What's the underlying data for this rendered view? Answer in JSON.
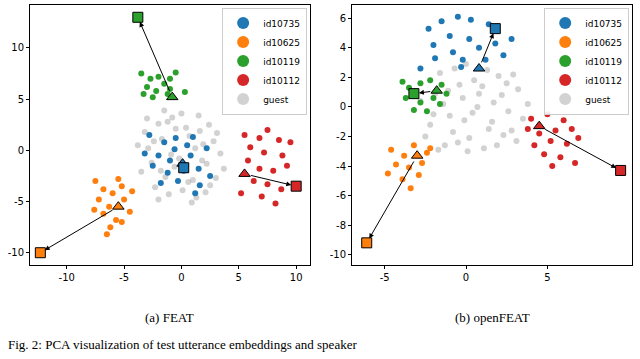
{
  "caption": "Fig. 2: PCA visualization of test utterance embeddings and speaker",
  "chart_data": [
    {
      "type": "scatter",
      "title": "(a) FEAT",
      "xlim": [
        -13.2,
        11.2
      ],
      "ylim": [
        -11.2,
        14.2
      ],
      "xticks": [
        -10,
        -5,
        0,
        5,
        10
      ],
      "yticks": [
        -10,
        -5,
        0,
        5,
        10
      ],
      "grid": false,
      "legend": "upper right",
      "series": [
        {
          "name": "id10735",
          "color": "#1f77b4",
          "x": [
            -2,
            -1.5,
            -0.5,
            0.5,
            1,
            -2.5,
            -1.2,
            0.8,
            1.5,
            -0.3,
            -1.8,
            1.6,
            -3.2,
            2.2,
            -1,
            0.2,
            -2.8,
            1.2,
            -0.6,
            2.5
          ],
          "y": [
            -0.5,
            0.8,
            1.2,
            0.5,
            1.3,
            -1.5,
            -2.2,
            -0.5,
            -1.8,
            -3,
            -3.2,
            -3.4,
            -0.3,
            0.2,
            -1,
            -2,
            1.5,
            -4.2,
            0.1,
            -2.5
          ],
          "arrow": {
            "from": [
              0.1,
              -1.3
            ],
            "to": [
              0.2,
              -1.7
            ]
          }
        },
        {
          "name": "id10625",
          "color": "#ff7f0e",
          "x": [
            -7.5,
            -6.8,
            -6,
            -5.2,
            -7.2,
            -6.3,
            -5,
            -4.3,
            -6.8,
            -5.7,
            -6.2,
            -5.2,
            -7.6,
            -4.5,
            -6.5,
            -5.5
          ],
          "y": [
            -3,
            -3.8,
            -4.2,
            -3.5,
            -4.8,
            -5.5,
            -4.8,
            -4,
            -6.2,
            -6.8,
            -7.5,
            -7,
            -5.8,
            -6,
            -8.2,
            -2.8
          ],
          "arrow": {
            "from": [
              -5.5,
              -5.5
            ],
            "to": [
              -12.3,
              -10
            ]
          }
        },
        {
          "name": "id10119",
          "color": "#2ca02c",
          "x": [
            -3.5,
            -2.7,
            -2,
            -1,
            -0.5,
            -1.5,
            -3,
            -2.2,
            -1,
            -2.5,
            -1.2,
            0.3,
            -3.3
          ],
          "y": [
            7.5,
            7,
            7.2,
            7,
            7.6,
            6.5,
            6.2,
            5.8,
            6,
            5.2,
            5.5,
            5.7,
            5.5
          ],
          "arrow": {
            "from": [
              -0.8,
              5.2
            ],
            "to": [
              -3.8,
              13
            ]
          }
        },
        {
          "name": "id10112",
          "color": "#d62728",
          "x": [
            5.5,
            6.8,
            7.5,
            8.5,
            6,
            7.2,
            8.8,
            5.8,
            6.8,
            8,
            9.2,
            6.3,
            7.5,
            8.7,
            5.2,
            7,
            8.2,
            9.5
          ],
          "y": [
            1.5,
            1.2,
            2,
            1,
            0.3,
            -0.2,
            -0.5,
            -1,
            -1.8,
            -2,
            -1.5,
            -3,
            -3.3,
            -3.8,
            -4.2,
            -4.5,
            -5.2,
            0.8
          ],
          "arrow": {
            "from": [
              5.5,
              -2.3
            ],
            "to": [
              10,
              -3.5
            ]
          }
        },
        {
          "name": "guest",
          "color": "#7f7f7f",
          "x": [
            -3.8,
            -3.2,
            -2.6,
            -2,
            -1.4,
            -0.8,
            -0.2,
            0.4,
            1,
            1.6,
            2.2,
            2.8,
            3.4,
            -3.5,
            -2.9,
            -2.3,
            -1.7,
            -1.1,
            -0.5,
            0.1,
            0.7,
            1.3,
            1.9,
            2.5,
            3.1,
            3.7,
            -3,
            -2.4,
            -1.8,
            -1.2,
            -0.6,
            0,
            0.6,
            1.2,
            1.8,
            2.4,
            3,
            -2,
            -0.9,
            0.9,
            2.1,
            -1.5,
            0.3,
            1.5
          ],
          "y": [
            0.5,
            1.8,
            -1.2,
            2.6,
            -2.6,
            3.2,
            -0.8,
            2.2,
            -2.9,
            1.9,
            -1.3,
            0.9,
            -0.3,
            -2.1,
            0.2,
            -3.6,
            1.1,
            -4.3,
            2.1,
            -3.9,
            1.4,
            -4.6,
            0.6,
            -3.4,
            1.7,
            -1.8,
            3.1,
            0.9,
            -2,
            2.8,
            -1.6,
            3.6,
            -3.1,
            0.2,
            -1,
            2.5,
            -2.7,
            -4.8,
            -0.4,
            -5.1,
            -4.1,
            3.9,
            -1.4,
            3.4
          ]
        }
      ]
    },
    {
      "type": "scatter",
      "title": "(b) openFEAT",
      "xlim": [
        -7,
        10.2
      ],
      "ylim": [
        -10.7,
        6.9
      ],
      "xticks": [
        -5,
        0,
        5
      ],
      "yticks": [
        -10,
        -8,
        -6,
        -4,
        -2,
        0,
        2,
        4,
        6
      ],
      "grid": false,
      "legend": "upper right",
      "series": [
        {
          "name": "id10735",
          "color": "#1f77b4",
          "x": [
            -2.3,
            -1.5,
            -0.5,
            0.3,
            1.4,
            -1,
            0.2,
            -2,
            0.8,
            1.8,
            -0.8,
            -1.9,
            -0.2,
            1.2,
            2.3,
            -2.8,
            2.8,
            -0.3
          ],
          "y": [
            5.3,
            5.8,
            6.1,
            5.9,
            5.6,
            4.8,
            4.6,
            4.2,
            4,
            4.3,
            3.7,
            3.3,
            3.2,
            3.2,
            3.5,
            2.6,
            4.6,
            2.7
          ],
          "arrow": {
            "from": [
              0.8,
              2.6
            ],
            "to": [
              1.8,
              5.3
            ]
          }
        },
        {
          "name": "id10625",
          "color": "#ff7f0e",
          "x": [
            -4.6,
            -3.8,
            -3.2,
            -2.4,
            -4.3,
            -3.5,
            -2.7,
            -4.8,
            -3.9,
            -2.9,
            -3.4,
            -2.2
          ],
          "y": [
            -2.9,
            -3.3,
            -2.6,
            -3.1,
            -3.9,
            -4.1,
            -3.8,
            -4.5,
            -4.9,
            -4.6,
            -5.5,
            -2.8
          ],
          "arrow": {
            "from": [
              -3,
              -3.3
            ],
            "to": [
              -6.1,
              -9.2
            ]
          }
        },
        {
          "name": "id10119",
          "color": "#2ca02c",
          "x": [
            -3.5,
            -2.8,
            -2.2,
            -1.5,
            -3.7,
            -2.8,
            -2,
            -1.2,
            -3.2,
            -2.4,
            -1.6,
            -3.9
          ],
          "y": [
            1.3,
            1.6,
            1.8,
            1.5,
            0.6,
            0.3,
            0.6,
            0.9,
            -0.2,
            -0.3,
            0.2,
            1.7
          ],
          "arrow": {
            "from": [
              -1.8,
              1.1
            ],
            "to": [
              -3.2,
              0.9
            ]
          }
        },
        {
          "name": "id10112",
          "color": "#d62728",
          "x": [
            4,
            5,
            6,
            4.5,
            5.5,
            6.5,
            4.2,
            5.2,
            6.2,
            4.8,
            5.8,
            6.7,
            5.3,
            3.8,
            6.9
          ],
          "y": [
            -0.8,
            -0.5,
            -0.9,
            -1.8,
            -1.6,
            -1.5,
            -2.6,
            -2.3,
            -2.5,
            -3.2,
            -3.4,
            -3.8,
            -4,
            -1.5,
            -2.1
          ],
          "arrow": {
            "from": [
              4.5,
              -1.3
            ],
            "to": [
              9.5,
              -4.3
            ]
          }
        },
        {
          "name": "guest",
          "color": "#7f7f7f",
          "x": [
            -2.8,
            -2.2,
            -1.6,
            -1,
            -0.4,
            0.2,
            0.8,
            1.4,
            2,
            2.6,
            3.2,
            3.8,
            -2.5,
            -1.9,
            -1.3,
            -0.7,
            -0.1,
            0.5,
            1.1,
            1.7,
            2.3,
            2.9,
            3.5,
            -2,
            -1.4,
            -0.8,
            -0.2,
            0.4,
            1,
            1.6,
            2.2,
            2.8,
            -1.1,
            0.1,
            1.3,
            2.5,
            -0.5,
            0.7,
            1.9,
            -1.7,
            3.1,
            0.0
          ],
          "y": [
            0.4,
            -1.2,
            2.3,
            -0.6,
            1.5,
            -2.1,
            0.9,
            -1.5,
            2.1,
            -0.3,
            1.2,
            0.2,
            -2,
            0.9,
            -2.6,
            2.6,
            -0.9,
            1.8,
            -2.8,
            0.3,
            -1.9,
            2.2,
            -0.8,
            -0.5,
            0.2,
            -1.7,
            0.6,
            -0.4,
            1.4,
            -1,
            0.8,
            -1.6,
            1.1,
            -3,
            2.5,
            1.6,
            -2.4,
            0,
            -2.6,
            -2.9,
            -2.3,
            2.9
          ]
        }
      ]
    }
  ]
}
